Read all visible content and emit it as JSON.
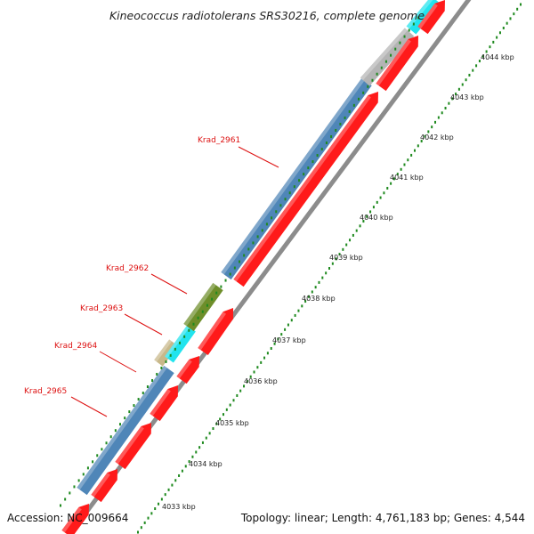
{
  "title": "Kineococcus radiotolerans SRS30216, complete genome",
  "footer": {
    "accession": "Accession: NC_009664",
    "summary": "Topology: linear; Length: 4,761,183 bp; Genes: 4,544"
  },
  "scale": {
    "unit": "kbp",
    "ticks": [
      "4044 kbp",
      "4043 kbp",
      "4042 kbp",
      "4041 kbp",
      "4040 kbp",
      "4039 kbp",
      "4038 kbp",
      "4037 kbp",
      "4036 kbp",
      "4035 kbp",
      "4034 kbp",
      "4033 kbp"
    ]
  },
  "gene_labels": [
    "Krad_2961",
    "Krad_2962",
    "Krad_2963",
    "Krad_2964",
    "Krad_2965"
  ],
  "colors": {
    "cds": "#ff1a1a",
    "gene": "#4f86b8",
    "gene_light": "#7eb0dc",
    "rrna_green": "#6e8e2a",
    "trna_cyan": "#22e4ee",
    "misc_tan": "#c8b88a",
    "misc_gray": "#b4b4b4",
    "backbone": "#8c8c8c",
    "ruler_dots": "#1f8a1f",
    "label_text": "#dd1111"
  }
}
